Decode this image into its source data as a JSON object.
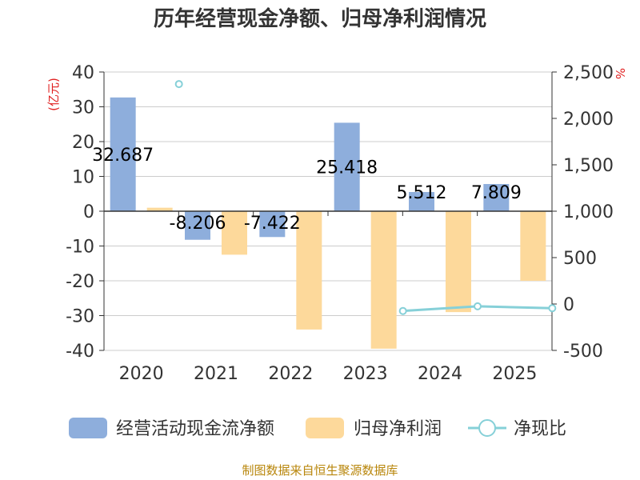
{
  "chart_data": {
    "type": "bar",
    "title": "历年经营现金净额、归母净利润情况",
    "categories": [
      "2020",
      "2021",
      "2022",
      "2023",
      "2024",
      "2025"
    ],
    "left_axis": {
      "unit": "(亿元)",
      "ylim": [
        -40,
        40
      ],
      "ticks": [
        40,
        30,
        20,
        10,
        0,
        -10,
        -20,
        -30,
        -40
      ]
    },
    "right_axis": {
      "unit": "%",
      "ylim": [
        -500,
        2500
      ],
      "ticks": [
        "2,500",
        "2,000",
        "1,500",
        "1,000",
        "500",
        "0",
        "-500"
      ]
    },
    "series": [
      {
        "name": "经营活动现金流净额",
        "type": "bar",
        "axis": "left",
        "color": "#8eaedc",
        "values": [
          32.687,
          -8.206,
          -7.422,
          25.418,
          5.512,
          7.809
        ],
        "labels": [
          "32.687",
          "-8.206",
          "-7.422",
          "25.418",
          "5.512",
          "7.809"
        ]
      },
      {
        "name": "归母净利润",
        "type": "bar",
        "axis": "left",
        "color": "#fdd99b",
        "values": [
          1.0,
          -12.5,
          -34.0,
          -39.5,
          -29.0,
          -20.0
        ]
      },
      {
        "name": "净现比",
        "type": "line",
        "axis": "right",
        "color": "#86d0d8",
        "values": [
          2370,
          null,
          null,
          -75,
          -25,
          -45
        ]
      }
    ]
  },
  "source": "制图数据来自恒生聚源数据库"
}
